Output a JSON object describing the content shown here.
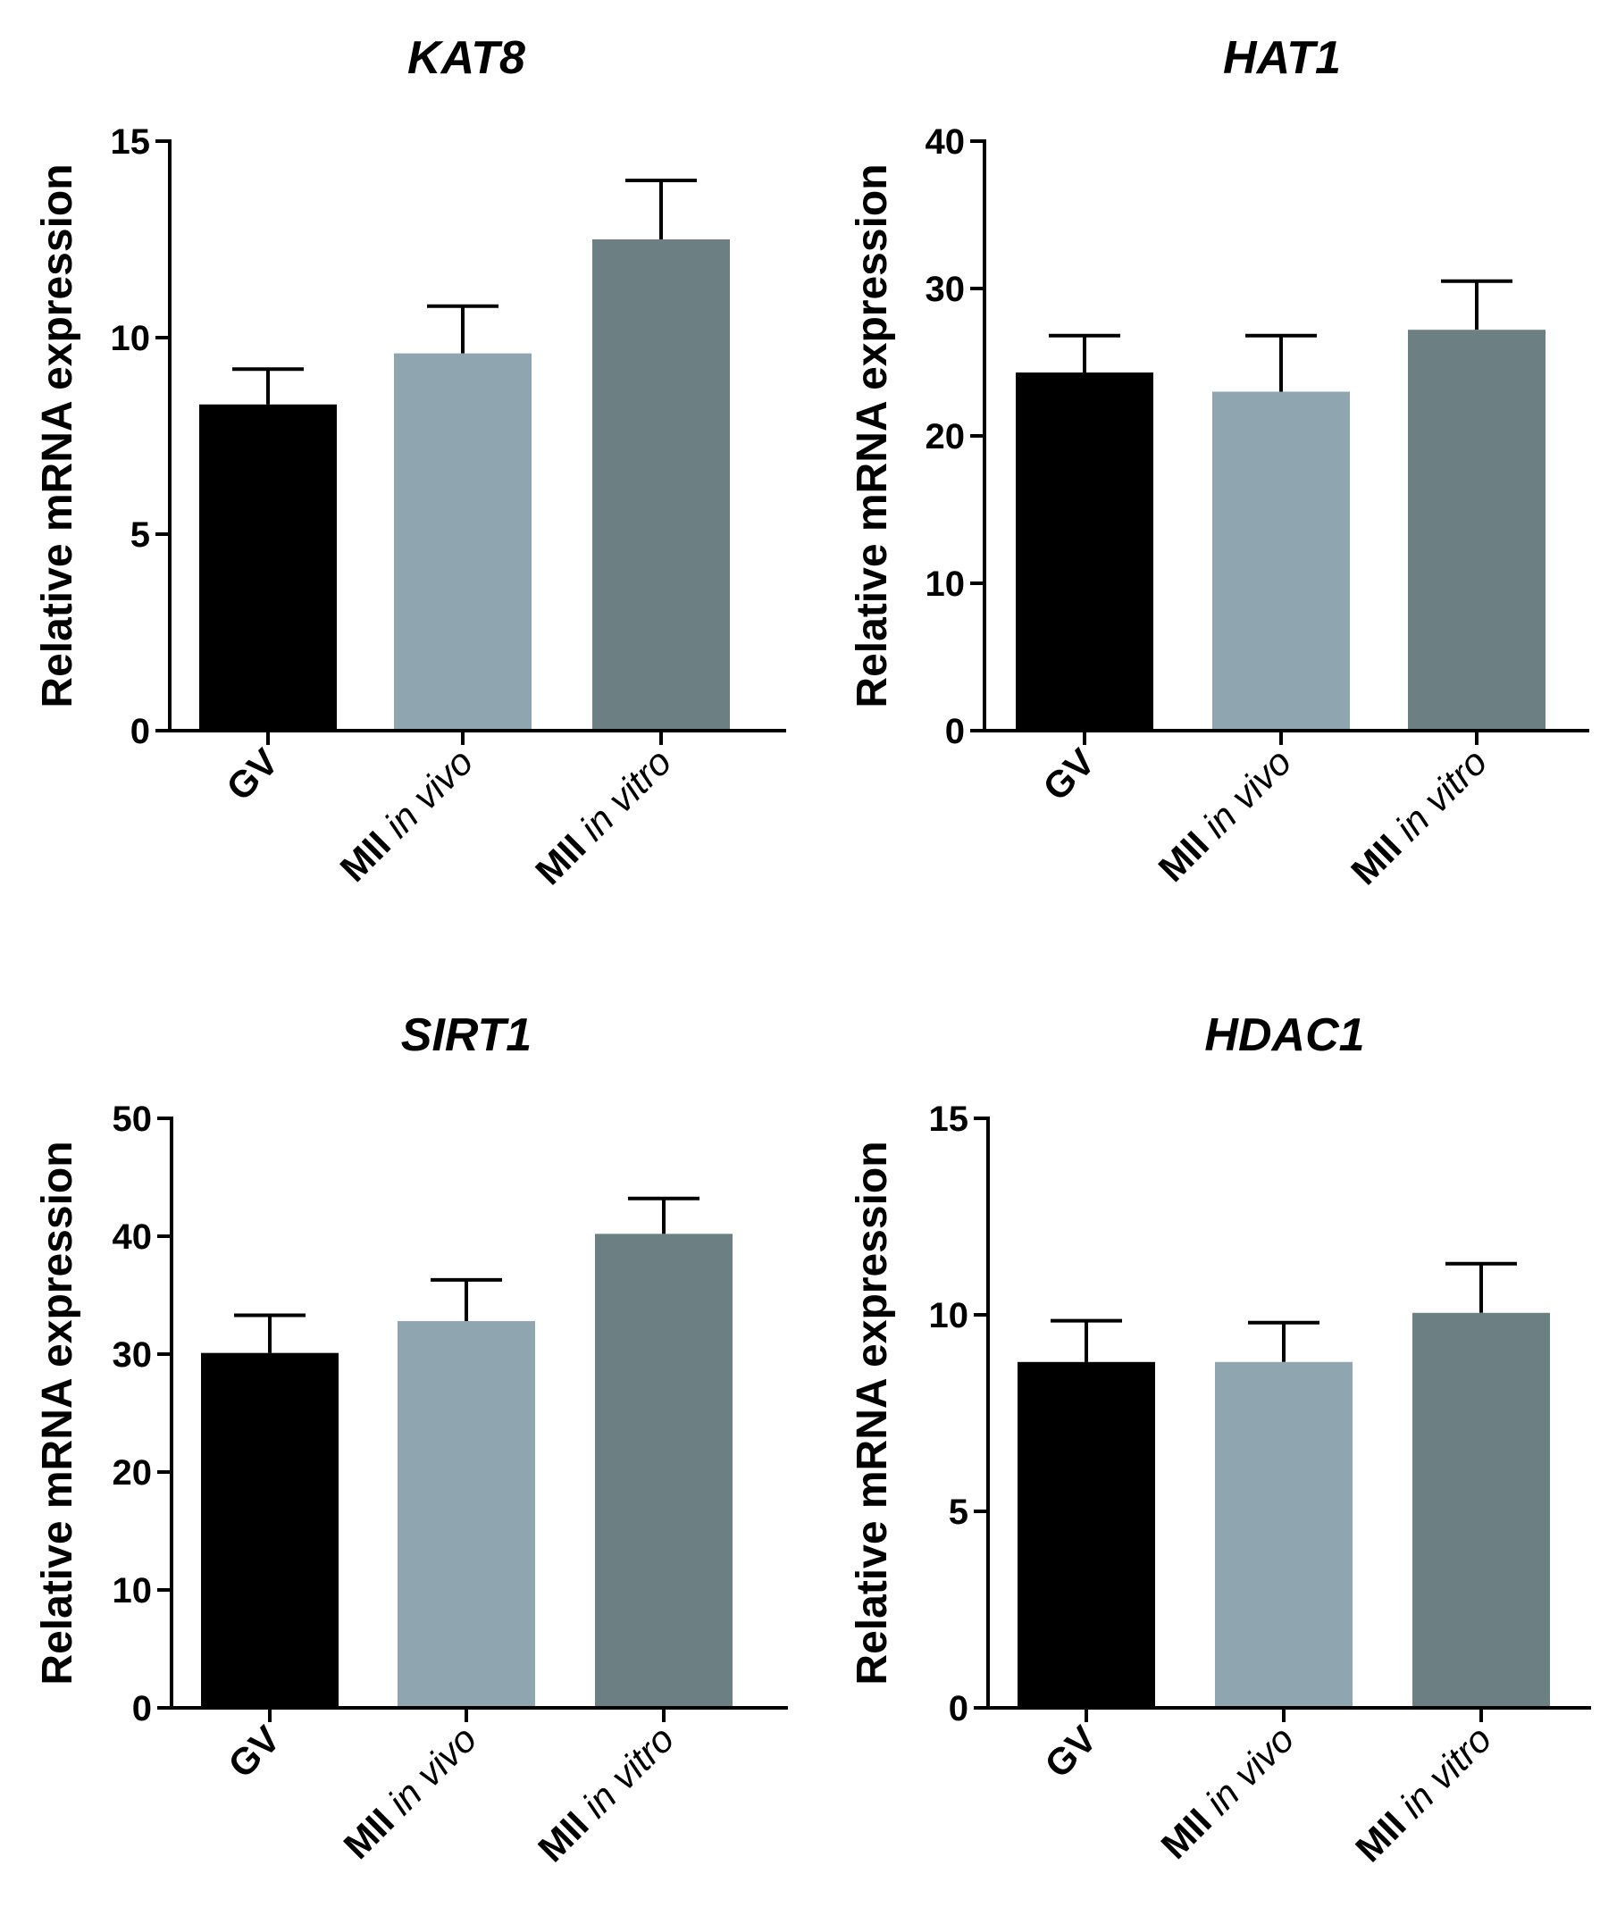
{
  "colors": {
    "GV": "#000000",
    "MII_in_vivo": "#8fa6b0",
    "MII_in_vitro": "#6c8083",
    "axis": "#000000"
  },
  "chart_data": [
    {
      "type": "bar",
      "title": "KAT8",
      "ylabel": "Relative mRNA expression",
      "xlabel": "",
      "ylim": [
        0,
        15
      ],
      "yticks": [
        "0",
        "5",
        "10",
        "15"
      ],
      "categories": [
        {
          "bold": "GV",
          "italic": ""
        },
        {
          "bold": "MII",
          "italic": "in vivo"
        },
        {
          "bold": "MII",
          "italic": "in vitro"
        }
      ],
      "values": [
        8.3,
        9.6,
        12.5
      ],
      "errors": [
        0.9,
        1.2,
        1.5
      ]
    },
    {
      "type": "bar",
      "title": "HAT1",
      "ylabel": "Relative mRNA expression",
      "xlabel": "",
      "ylim": [
        0,
        40
      ],
      "yticks": [
        "0",
        "10",
        "20",
        "30",
        "40"
      ],
      "categories": [
        {
          "bold": "GV",
          "italic": ""
        },
        {
          "bold": "MII",
          "italic": "in vivo"
        },
        {
          "bold": "MII",
          "italic": "in vitro"
        }
      ],
      "values": [
        24.3,
        23.0,
        27.2
      ],
      "errors": [
        2.5,
        3.8,
        3.3
      ]
    },
    {
      "type": "bar",
      "title": "SIRT1",
      "ylabel": "Relative mRNA expression",
      "xlabel": "",
      "ylim": [
        0,
        50
      ],
      "yticks": [
        "0",
        "10",
        "20",
        "30",
        "40",
        "50"
      ],
      "categories": [
        {
          "bold": "GV",
          "italic": ""
        },
        {
          "bold": "MII",
          "italic": "in vivo"
        },
        {
          "bold": "MII",
          "italic": "in vitro"
        }
      ],
      "values": [
        30.1,
        32.8,
        40.2
      ],
      "errors": [
        3.2,
        3.5,
        3.0
      ]
    },
    {
      "type": "bar",
      "title": "HDAC1",
      "ylabel": "Relative mRNA expression",
      "xlabel": "",
      "ylim": [
        0,
        15
      ],
      "yticks": [
        "0",
        "5",
        "10",
        "15"
      ],
      "categories": [
        {
          "bold": "GV",
          "italic": ""
        },
        {
          "bold": "MII",
          "italic": "in vivo"
        },
        {
          "bold": "MII",
          "italic": "in vitro"
        }
      ],
      "values": [
        8.8,
        8.8,
        10.05
      ],
      "errors": [
        1.05,
        1.0,
        1.25
      ]
    }
  ]
}
